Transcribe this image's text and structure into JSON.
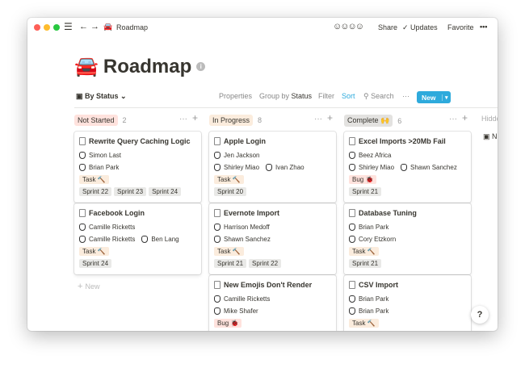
{
  "titlebar": {
    "title": "Roadmap",
    "emoji": "🚘",
    "share": "Share",
    "updates": "Updates",
    "favorite": "Favorite",
    "more": "•••"
  },
  "page": {
    "title": "Roadmap",
    "emoji": "🚘",
    "info": "i"
  },
  "toolbar": {
    "view": "By Status",
    "properties": "Properties",
    "group_by": "Group by",
    "group_value": "Status",
    "filter": "Filter",
    "sort": "Sort",
    "search": "Search",
    "more": "···",
    "new": "New"
  },
  "colors": {
    "accent": "#2eaadc",
    "task": "#fbecdd",
    "bug": "#ffe2dd",
    "sprint": "#e9e9e7"
  },
  "columns": [
    {
      "label": "Not Started",
      "count": "2",
      "color": "#ffe2dd",
      "cards": [
        {
          "title": "Rewrite Query Caching Logic",
          "people": [
            [
              "Simon Last"
            ],
            [
              "Brian Park"
            ]
          ],
          "type": "Task 🔨",
          "sprints": [
            "Sprint 22",
            "Sprint 23",
            "Sprint 24"
          ]
        },
        {
          "title": "Facebook Login",
          "people": [
            [
              "Camille Ricketts"
            ],
            [
              "Camille Ricketts",
              "Ben Lang"
            ]
          ],
          "type": "Task 🔨",
          "sprints": [
            "Sprint 24"
          ]
        }
      ],
      "new": "New"
    },
    {
      "label": "In Progress",
      "count": "8",
      "color": "#fbecdd",
      "cards": [
        {
          "title": "Apple Login",
          "people": [
            [
              "Jen Jackson"
            ],
            [
              "Shirley Miao",
              "Ivan Zhao"
            ]
          ],
          "type": "Task 🔨",
          "sprints": [
            "Sprint 20"
          ]
        },
        {
          "title": "Evernote Import",
          "people": [
            [
              "Harrison Medoff"
            ],
            [
              "Shawn Sanchez"
            ]
          ],
          "type": "Task 🔨",
          "sprints": [
            "Sprint 21",
            "Sprint 22"
          ]
        },
        {
          "title": "New Emojis Don't Render",
          "people": [
            [
              "Camille Ricketts"
            ],
            [
              "Mike Shafer"
            ]
          ],
          "type": "Bug 🐞",
          "sprints": []
        }
      ]
    },
    {
      "label": "Complete 🙌",
      "count": "6",
      "color": "#e3e2e0",
      "cards": [
        {
          "title": "Excel Imports >20Mb Fail",
          "people": [
            [
              "Beez Africa"
            ],
            [
              "Shirley Miao",
              "Shawn Sanchez"
            ]
          ],
          "type": "Bug 🐞",
          "sprints": [
            "Sprint 21"
          ]
        },
        {
          "title": "Database Tuning",
          "people": [
            [
              "Brian Park"
            ],
            [
              "Cory Etzkorn"
            ]
          ],
          "type": "Task 🔨",
          "sprints": [
            "Sprint 21"
          ]
        },
        {
          "title": "CSV Import",
          "people": [
            [
              "Brian Park"
            ],
            [
              "Brian Park"
            ]
          ],
          "type": "Task 🔨",
          "sprints": []
        }
      ]
    }
  ],
  "hidden": {
    "label": "Hidden",
    "item": "N"
  },
  "help": "?"
}
